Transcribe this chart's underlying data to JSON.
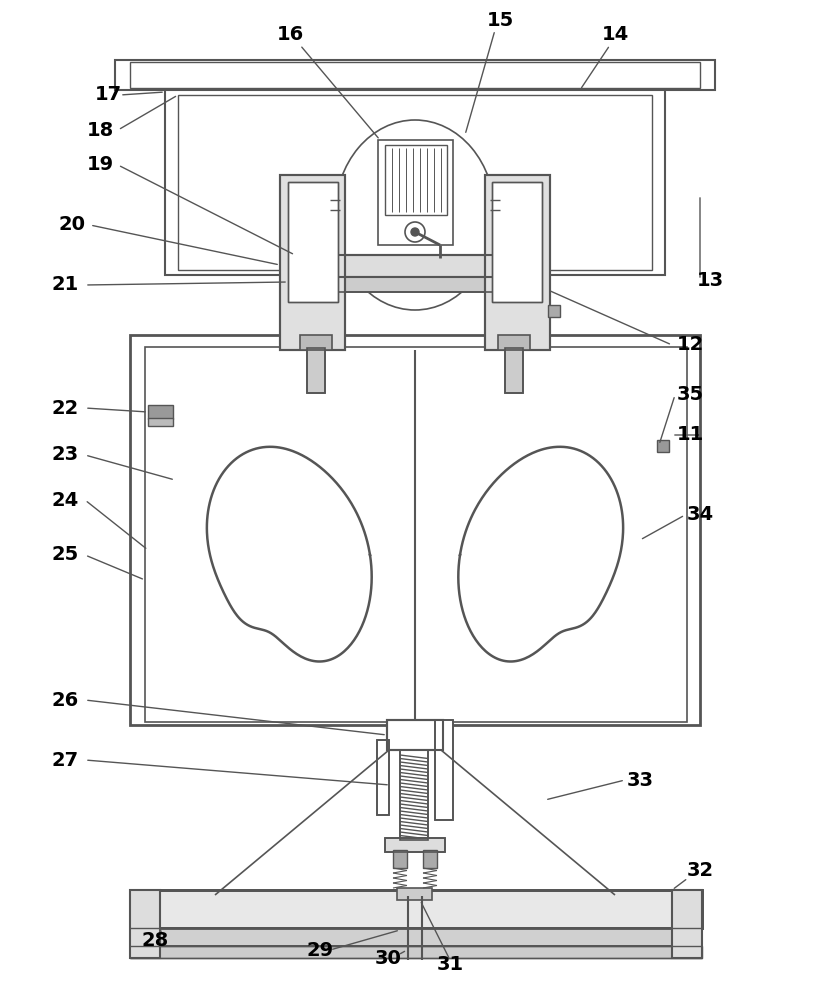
{
  "bg_color": "#ffffff",
  "lc": "#555555",
  "lw": 1.5,
  "fs": 14
}
